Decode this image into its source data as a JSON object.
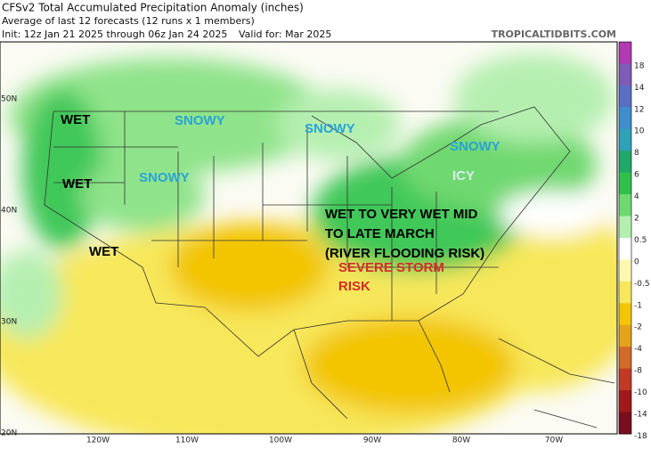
{
  "header": {
    "title": "CFSv2 Total Accumulated Precipitation Anomaly (inches)",
    "subtitle": "Average of last 12 forecasts (12 runs x 1 members)",
    "init": "Init: 12z Jan 21 2025 through 06z Jan 24 2025",
    "valid": "Valid for: Mar 2025",
    "source": "TROPICALTIDBITS.COM"
  },
  "annotations": [
    {
      "text": "WET",
      "color": "#000000"
    },
    {
      "text": "WET",
      "color": "#000000"
    },
    {
      "text": "SNOWY",
      "color": "#29a3d6"
    },
    {
      "text": "SNOWY",
      "color": "#29a3d6"
    },
    {
      "text": "SNOWY",
      "color": "#29a3d6"
    },
    {
      "text": "SNOWY",
      "color": "#29a3d6"
    },
    {
      "text": "ICY",
      "color": "#d9ecf2"
    },
    {
      "text": "WET TO VERY WET MID",
      "color": "#000000"
    },
    {
      "text": "TO LATE MARCH",
      "color": "#000000"
    },
    {
      "text": "(RIVER FLOODING RISK)",
      "color": "#000000"
    },
    {
      "text": "WET",
      "color": "#000000"
    },
    {
      "text": "SEVERE STORM",
      "color": "#d62b2b"
    },
    {
      "text": "RISK",
      "color": "#d62b2b"
    }
  ],
  "lat_labels": [
    "50N",
    "40N",
    "30N",
    "20N"
  ],
  "lon_labels": [
    "120W",
    "110W",
    "100W",
    "90W",
    "80W",
    "70W"
  ],
  "colorbar": [
    {
      "label": "18",
      "color": "#b23ab3"
    },
    {
      "label": "14",
      "color": "#7e5cb5"
    },
    {
      "label": "12",
      "color": "#5a6fc4"
    },
    {
      "label": "10",
      "color": "#3f8fcf"
    },
    {
      "label": "8",
      "color": "#2fa2b8"
    },
    {
      "label": "6",
      "color": "#1faa6a"
    },
    {
      "label": "4",
      "color": "#2fc04a"
    },
    {
      "label": "2",
      "color": "#6fd86f"
    },
    {
      "label": "0.5",
      "color": "#b5efb0"
    },
    {
      "label": "0",
      "color": "#ffffff"
    },
    {
      "label": "-0.5",
      "color": "#fdf7b0"
    },
    {
      "label": "-1",
      "color": "#f7e75a"
    },
    {
      "label": "-2",
      "color": "#f2c500"
    },
    {
      "label": "-4",
      "color": "#e3a419"
    },
    {
      "label": "-8",
      "color": "#d26a28"
    },
    {
      "label": "-10",
      "color": "#c23a26"
    },
    {
      "label": "-14",
      "color": "#a01a1a"
    },
    {
      "label": "-18",
      "color": "#7a0e1e"
    }
  ]
}
